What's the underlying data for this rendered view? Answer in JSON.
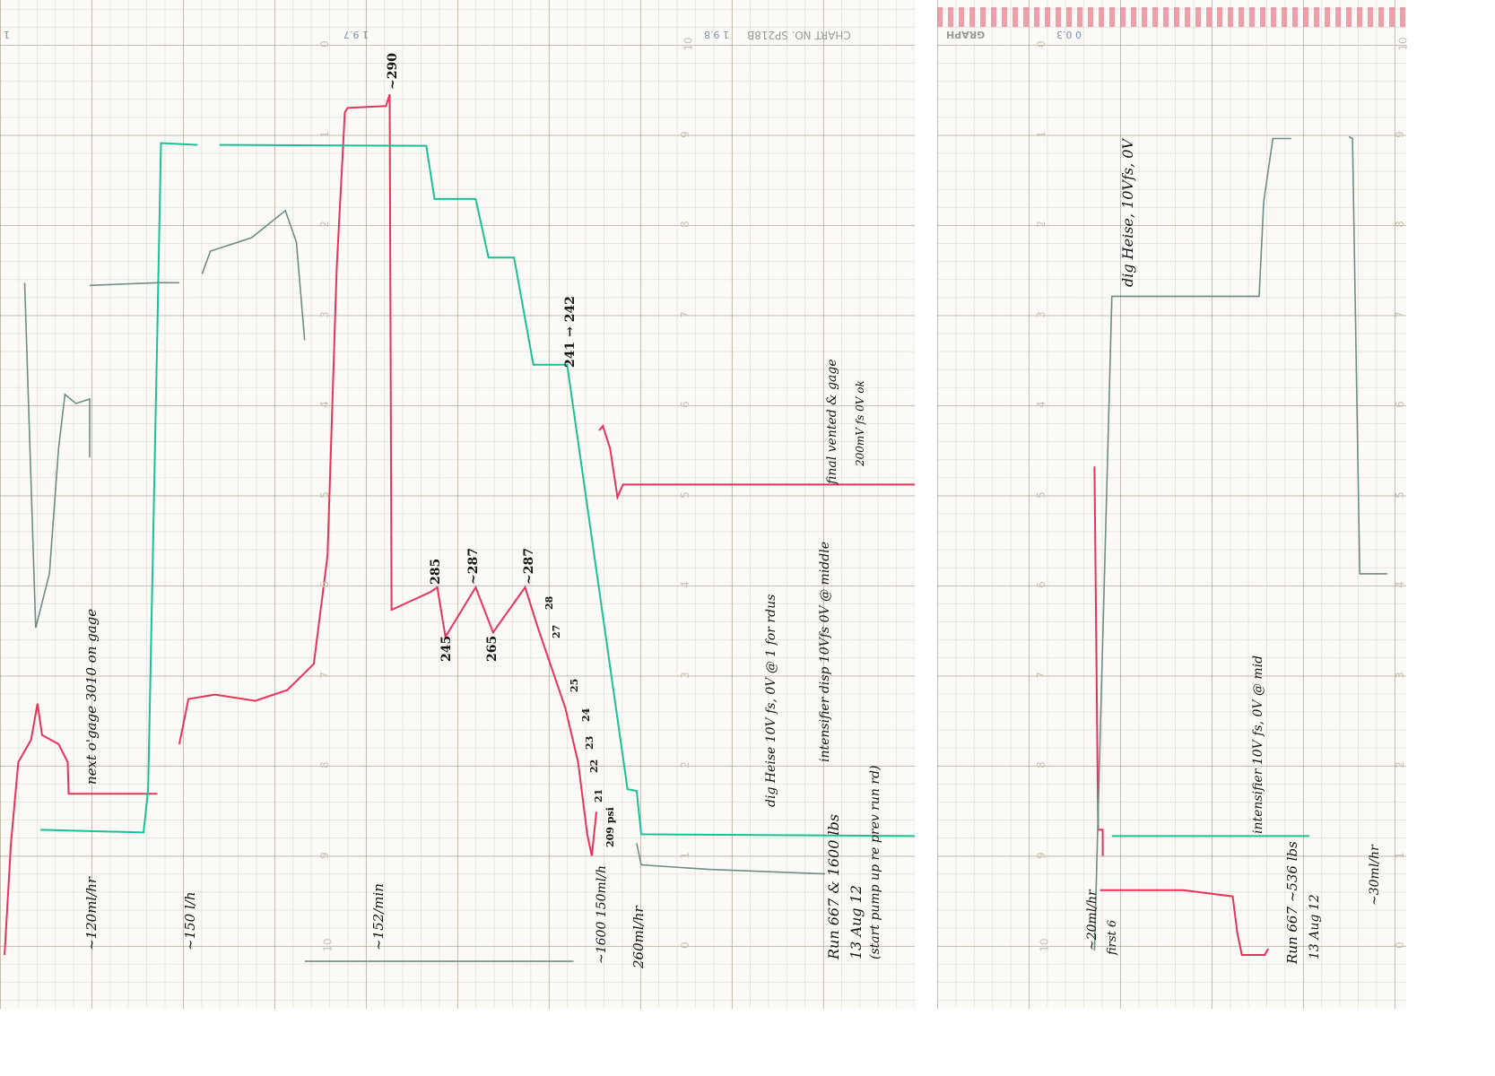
{
  "printed": {
    "left_corner": "1",
    "chart_id_1": "1 9.7",
    "chart_id_2": "1 9.8",
    "chart_no": "CHART NO. SP218B",
    "brand": "GRAPH",
    "right_id": "0 0.3"
  },
  "chart_data": {
    "type": "line",
    "title": "",
    "xlabel": "",
    "ylabel": "",
    "grid": true,
    "scale_labels_left": [
      "0",
      "1",
      "2",
      "3",
      "4",
      "5",
      "6",
      "7",
      "8",
      "9",
      "10"
    ],
    "scale_labels_right": [
      "10",
      "9",
      "8",
      "7",
      "6",
      "5",
      "4",
      "3",
      "2",
      "1",
      "0"
    ],
    "colors": {
      "red": "#e8325a",
      "green": "#19c296",
      "gray": "#6f8c86"
    },
    "panels": [
      {
        "name": "left",
        "series": [
          {
            "color": "red",
            "segments": [
              [
                [
                  0.05,
                  10.1
                ],
                [
                  0.12,
                  8.86
                ],
                [
                  0.2,
                  7.96
                ],
                [
                  0.34,
                  7.71
                ],
                [
                  0.41,
                  7.31
                ],
                [
                  0.46,
                  7.66
                ],
                [
                  0.64,
                  7.76
                ],
                [
                  0.74,
                  7.96
                ],
                [
                  0.75,
                  8.31
                ],
                [
                  1.72,
                  8.31
                ]
              ],
              [
                [
                  1.96,
                  7.76
                ],
                [
                  2.06,
                  7.26
                ],
                [
                  2.35,
                  7.21
                ],
                [
                  2.79,
                  7.28
                ],
                [
                  3.14,
                  7.16
                ],
                [
                  3.43,
                  6.87
                ],
                [
                  3.58,
                  5.67
                ],
                [
                  3.68,
                  2.49
                ],
                [
                  3.77,
                  0.75
                ],
                [
                  3.8,
                  0.7
                ],
                [
                  4.22,
                  0.68
                ],
                [
                  4.26,
                  0.55
                ],
                [
                  4.28,
                  6.27
                ],
                [
                  4.71,
                  6.07
                ],
                [
                  4.78,
                  6.02
                ],
                [
                  4.87,
                  6.57
                ],
                [
                  5.2,
                  6.02
                ],
                [
                  5.39,
                  6.52
                ],
                [
                  5.74,
                  6.02
                ],
                [
                  5.88,
                  6.47
                ],
                [
                  6.18,
                  7.36
                ],
                [
                  6.32,
                  7.96
                ],
                [
                  6.42,
                  8.76
                ],
                [
                  6.47,
                  9.0
                ],
                [
                  6.52,
                  8.51
                ]
              ],
              [
                [
                  6.55,
                  4.28
                ],
                [
                  6.59,
                  4.23
                ],
                [
                  6.67,
                  4.48
                ],
                [
                  6.75,
                  5.02
                ],
                [
                  6.81,
                  4.88
                ],
                [
                  10.0,
                  4.88
                ]
              ]
            ]
          },
          {
            "color": "green",
            "segments": [
              [
                [
                  0.44,
                  8.71
                ],
                [
                  1.57,
                  8.74
                ],
                [
                  1.62,
                  8.26
                ],
                [
                  1.72,
                  3.18
                ],
                [
                  1.76,
                  1.09
                ],
                [
                  2.16,
                  1.11
                ]
              ],
              [
                [
                  2.4,
                  1.11
                ],
                [
                  4.66,
                  1.12
                ],
                [
                  4.75,
                  1.71
                ],
                [
                  5.2,
                  1.71
                ],
                [
                  5.34,
                  2.36
                ],
                [
                  5.62,
                  2.36
                ],
                [
                  5.83,
                  3.55
                ],
                [
                  6.2,
                  3.55
                ],
                [
                  6.86,
                  8.26
                ],
                [
                  6.96,
                  8.28
                ],
                [
                  7.01,
                  8.76
                ],
                [
                  10.0,
                  8.78
                ]
              ]
            ]
          },
          {
            "color": "gray",
            "segments": [
              [
                [
                  0.27,
                  2.64
                ],
                [
                  0.39,
                  6.47
                ],
                [
                  0.54,
                  5.87
                ],
                [
                  0.64,
                  4.48
                ],
                [
                  0.71,
                  3.88
                ],
                [
                  0.83,
                  3.98
                ],
                [
                  0.98,
                  3.93
                ],
                [
                  0.98,
                  4.58
                ]
              ],
              [
                [
                  0.98,
                  2.67
                ],
                [
                  1.72,
                  2.64
                ],
                [
                  1.96,
                  2.64
                ]
              ],
              [
                [
                  2.21,
                  2.54
                ],
                [
                  2.3,
                  2.29
                ],
                [
                  2.75,
                  2.14
                ],
                [
                  3.12,
                  1.84
                ],
                [
                  3.24,
                  2.19
                ],
                [
                  3.33,
                  3.28
                ]
              ],
              [
                [
                  6.96,
                  8.86
                ],
                [
                  7.01,
                  9.1
                ],
                [
                  7.75,
                  9.15
                ],
                [
                  9.02,
                  9.2
                ]
              ],
              [
                [
                  3.33,
                  10.17
                ],
                [
                  6.27,
                  10.17
                ]
              ]
            ]
          }
        ]
      },
      {
        "name": "right",
        "series": [
          {
            "color": "red",
            "segments": [
              [
                [
                  1.72,
                  4.68
                ],
                [
                  1.76,
                  8.71
                ],
                [
                  1.81,
                  8.71
                ],
                [
                  1.81,
                  9.0
                ]
              ],
              [
                [
                  1.78,
                  9.38
                ],
                [
                  2.69,
                  9.38
                ],
                [
                  3.23,
                  9.45
                ],
                [
                  3.28,
                  9.85
                ],
                [
                  3.33,
                  10.1
                ],
                [
                  3.58,
                  10.1
                ],
                [
                  3.62,
                  10.03
                ]
              ]
            ]
          },
          {
            "color": "green",
            "segments": [
              [
                [
                  1.91,
                  8.78
                ],
                [
                  4.07,
                  8.78
                ]
              ]
            ]
          },
          {
            "color": "gray",
            "segments": [
              [
                [
                  1.72,
                  10.05
                ],
                [
                  1.91,
                  2.79
                ],
                [
                  3.52,
                  2.79
                ],
                [
                  3.57,
                  1.74
                ],
                [
                  3.67,
                  1.04
                ],
                [
                  3.87,
                  1.04
                ]
              ],
              [
                [
                  4.5,
                  1.02
                ],
                [
                  4.54,
                  1.04
                ],
                [
                  4.62,
                  5.87
                ],
                [
                  4.92,
                  5.87
                ]
              ]
            ]
          }
        ]
      }
    ],
    "annotations": {
      "peak": "~290",
      "p285": "285",
      "p287a": "~287",
      "p287b": "~287",
      "v245": "245",
      "v265": "265",
      "step": "241 → 242",
      "t28": "28",
      "t27": "27",
      "t25": "25",
      "t24": "24",
      "t23": "23",
      "t22": "22",
      "t21": "21",
      "t209": "209 psi",
      "next_gage": "next o'gage 3010 on gage",
      "rate120": "~120ml/hr",
      "rate150": "~150 l/h",
      "rate152": "~152/min",
      "rate1600": "~1600 150ml/h",
      "rate260": "260ml/hr",
      "heise": "dig Heise 10V fs, 0V @ 1 for rdus",
      "intens": "intensifier disp 10Vfs 0V @ middle",
      "run1": "Run 667 & 1600 lbs",
      "run2": "13 Aug 12",
      "run3": "(start pump up re prev run rd)",
      "final": "final vented & gage",
      "final2": "200mV fs 0V ok",
      "r_heise": "dig Heise, 10Vfs, 0V",
      "r_intens": "intensifier 10V fs, 0V @ mid",
      "r_run": "Run 667 ~536 lbs",
      "r_date": "13 Aug 12",
      "r_rate": "~30ml/hr",
      "r_rate2": "~20ml/hr",
      "r_first": "first 6"
    }
  }
}
